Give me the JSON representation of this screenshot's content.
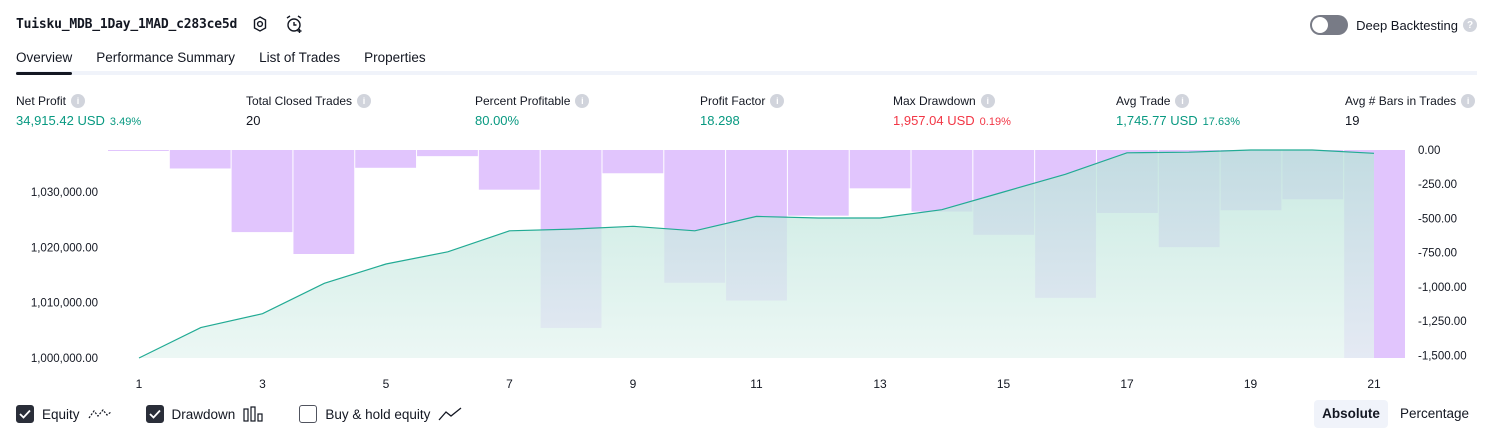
{
  "header": {
    "title": "Tuisku_MDB_1Day_1MAD_c283ce5d",
    "settings_icon": "gear-icon",
    "alert_icon": "alarm-clock-add-icon"
  },
  "deep_backtesting": {
    "label": "Deep Backtesting",
    "enabled": false,
    "help": "?"
  },
  "tabs": [
    {
      "label": "Overview",
      "active": true
    },
    {
      "label": "Performance Summary",
      "active": false
    },
    {
      "label": "List of Trades",
      "active": false
    },
    {
      "label": "Properties",
      "active": false
    }
  ],
  "stats": [
    {
      "label": "Net Profit",
      "value": "34,915.42 USD",
      "percent": "3.49%",
      "color": "green"
    },
    {
      "label": "Total Closed Trades",
      "value": "20",
      "percent": "",
      "color": "dark"
    },
    {
      "label": "Percent Profitable",
      "value": "80.00%",
      "percent": "",
      "color": "green"
    },
    {
      "label": "Profit Factor",
      "value": "18.298",
      "percent": "",
      "color": "green"
    },
    {
      "label": "Max Drawdown",
      "value": "1,957.04 USD",
      "percent": "0.19%",
      "color": "red"
    },
    {
      "label": "Avg Trade",
      "value": "1,745.77 USD",
      "percent": "17.63%",
      "color": "green"
    },
    {
      "label": "Avg # Bars in Trades",
      "value": "19",
      "percent": "",
      "color": "dark"
    }
  ],
  "chart_data": {
    "type": "line",
    "x": [
      1,
      2,
      3,
      4,
      5,
      6,
      7,
      8,
      9,
      10,
      11,
      12,
      13,
      14,
      15,
      16,
      17,
      18,
      19,
      20,
      21
    ],
    "x_tick_labels": [
      "1",
      "3",
      "5",
      "7",
      "9",
      "11",
      "13",
      "15",
      "17",
      "19",
      "21"
    ],
    "equity": {
      "name": "Equity",
      "values": [
        1000000,
        1005500,
        1008000,
        1013500,
        1017000,
        1019200,
        1023000,
        1023300,
        1023800,
        1023000,
        1025600,
        1025300,
        1025300,
        1026800,
        1030000,
        1033200,
        1037100,
        1037200,
        1037600,
        1037600,
        1037000
      ],
      "ylim": [
        1000000,
        1037600
      ],
      "y_ticks": [
        "1,000,000.00",
        "1,010,000.00",
        "1,020,000.00",
        "1,030,000.00"
      ],
      "line_color": "#22ab94"
    },
    "drawdown": {
      "name": "Drawdown",
      "values": [
        -5,
        -135,
        -600,
        -760,
        -130,
        -45,
        -290,
        -1300,
        -170,
        -970,
        -1100,
        -480,
        -280,
        -450,
        -620,
        -1080,
        -460,
        -710,
        -440,
        -360,
        -1520
      ],
      "ylim": [
        -1520,
        0
      ],
      "y_ticks": [
        "0.00",
        "-250.00",
        "-500.00",
        "-750.00",
        "-1,000.00",
        "-1,250.00",
        "-1,500.00"
      ],
      "bar_color": "#e1c5fd"
    }
  },
  "legend": [
    {
      "label": "Equity",
      "checked": true,
      "icon": "equity-line-icon"
    },
    {
      "label": "Drawdown",
      "checked": true,
      "icon": "drawdown-bars-icon"
    },
    {
      "label": "Buy & hold equity",
      "checked": false,
      "icon": "buy-hold-line-icon"
    }
  ],
  "mode": {
    "options": [
      "Absolute",
      "Percentage"
    ],
    "selected": "Absolute"
  }
}
